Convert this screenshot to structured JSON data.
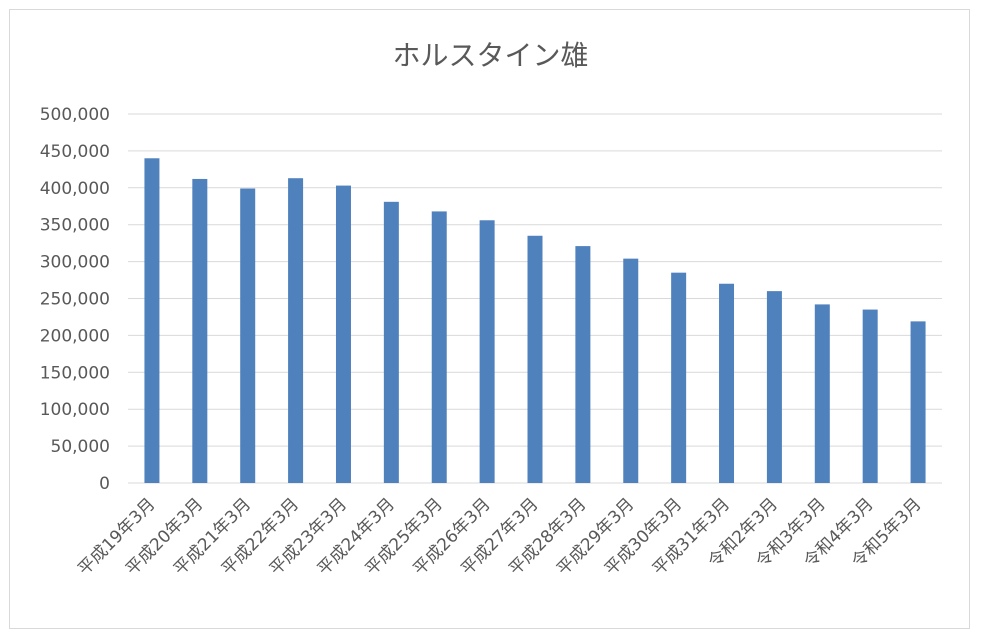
{
  "chart_data": {
    "type": "bar",
    "title": "ホルスタイン雄",
    "categories": [
      "平成19年3月",
      "平成20年3月",
      "平成21年3月",
      "平成22年3月",
      "平成23年3月",
      "平成24年3月",
      "平成25年3月",
      "平成26年3月",
      "平成27年3月",
      "平成28年3月",
      "平成29年3月",
      "平成30年3月",
      "平成31年3月",
      "令和2年3月",
      "令和3年3月",
      "令和4年3月",
      "令和5年3月"
    ],
    "values": [
      440000,
      412000,
      399000,
      413000,
      403000,
      381000,
      368000,
      356000,
      335000,
      321000,
      304000,
      285000,
      270000,
      260000,
      242000,
      235000,
      219000
    ],
    "ylim": [
      0,
      500000
    ],
    "ytick_step": 50000,
    "ytick_labels": [
      "0",
      "50,000",
      "100,000",
      "150,000",
      "200,000",
      "250,000",
      "300,000",
      "350,000",
      "400,000",
      "450,000",
      "500,000"
    ],
    "grid": true,
    "legend": "none",
    "bar_color": "#4f81bd",
    "grid_color": "#d9d9d9"
  }
}
